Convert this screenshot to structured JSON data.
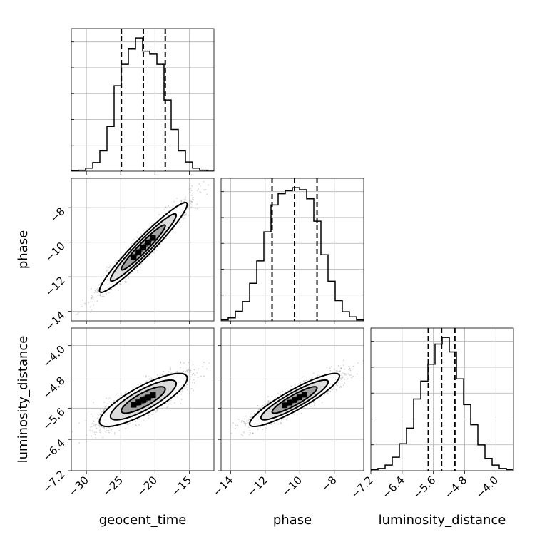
{
  "chart_data": {
    "type": "corner",
    "parameters": [
      "geocent_time",
      "phase",
      "luminosity_distance"
    ],
    "ranges": {
      "geocent_time": [
        -32.2,
        -11.4
      ],
      "phase": [
        -14.55,
        -6.3
      ],
      "luminosity_distance": [
        -7.2,
        -3.55
      ]
    },
    "ticks": {
      "geocent_time": [
        -30,
        -25,
        -20,
        -15
      ],
      "phase": [
        -14,
        -12,
        -10,
        -8
      ],
      "luminosity_distance": [
        -7.2,
        -6.4,
        -5.6,
        -4.8,
        -4.0
      ]
    },
    "tick_labels": {
      "geocent_time": [
        "−30",
        "−25",
        "−20",
        "−15"
      ],
      "phase": [
        "−14",
        "−12",
        "−10",
        "−8"
      ],
      "luminosity_distance": [
        "−7.2",
        "−6.4",
        "−5.6",
        "−4.8",
        "−4.0"
      ]
    },
    "quantiles": {
      "geocent_time": [
        -24.9,
        -21.7,
        -18.5
      ],
      "phase": [
        -11.6,
        -10.3,
        -9.0
      ],
      "luminosity_distance": [
        -5.73,
        -5.39,
        -5.05
      ]
    },
    "histograms": {
      "geocent_time": {
        "bin_edges": [
          -32.2,
          -31.16,
          -30.12,
          -29.08,
          -28.04,
          -27.0,
          -25.96,
          -24.92,
          -23.88,
          -22.84,
          -21.8,
          -20.76,
          -19.72,
          -18.68,
          -17.64,
          -16.6,
          -15.56,
          -14.52,
          -13.48,
          -12.44,
          -11.4
        ],
        "counts": [
          1,
          2,
          6,
          17,
          40,
          88,
          168,
          210,
          240,
          262,
          236,
          230,
          210,
          140,
          82,
          40,
          18,
          6,
          2,
          0
        ]
      },
      "phase": {
        "bin_edges": [
          -14.55,
          -14.1375,
          -13.725,
          -13.3125,
          -12.9,
          -12.4875,
          -12.075,
          -11.6625,
          -11.25,
          -10.8375,
          -10.425,
          -10.0125,
          -9.6,
          -9.1875,
          -8.775,
          -8.3625,
          -7.95,
          -7.5375,
          -7.125,
          -6.7125,
          -6.3
        ],
        "counts": [
          2,
          6,
          19,
          38,
          74,
          118,
          175,
          228,
          250,
          256,
          262,
          258,
          240,
          196,
          130,
          78,
          40,
          18,
          8,
          2
        ]
      },
      "luminosity_distance": {
        "bin_edges": [
          -7.2,
          -7.0175,
          -6.835,
          -6.6525,
          -6.47,
          -6.2875,
          -6.105,
          -5.9225,
          -5.74,
          -5.5575,
          -5.375,
          -5.1925,
          -5.01,
          -4.8275,
          -4.645,
          -4.4625,
          -4.28,
          -4.0975,
          -3.915,
          -3.7325,
          -3.55
        ],
        "counts": [
          2,
          4,
          10,
          24,
          48,
          76,
          128,
          160,
          190,
          226,
          238,
          212,
          164,
          118,
          82,
          46,
          22,
          10,
          4,
          2
        ]
      }
    },
    "pairs": [
      {
        "x": "geocent_time",
        "y": "phase",
        "mean": [
          -21.7,
          -10.3
        ],
        "sd": [
          3.2,
          1.3
        ],
        "corr": 0.96
      },
      {
        "x": "geocent_time",
        "y": "luminosity_distance",
        "mean": [
          -21.7,
          -5.39
        ],
        "sd": [
          3.2,
          0.34
        ],
        "corr": 0.82
      },
      {
        "x": "phase",
        "y": "luminosity_distance",
        "mean": [
          -10.3,
          -5.39
        ],
        "sd": [
          1.3,
          0.34
        ],
        "corr": 0.9
      }
    ],
    "contour_sigma_levels": [
      0.5,
      1.0,
      1.5,
      2.0
    ],
    "grid": true,
    "colors": {
      "line": "#000000",
      "sample": "#7f7f7f",
      "grid": "#b0b0b0"
    }
  }
}
